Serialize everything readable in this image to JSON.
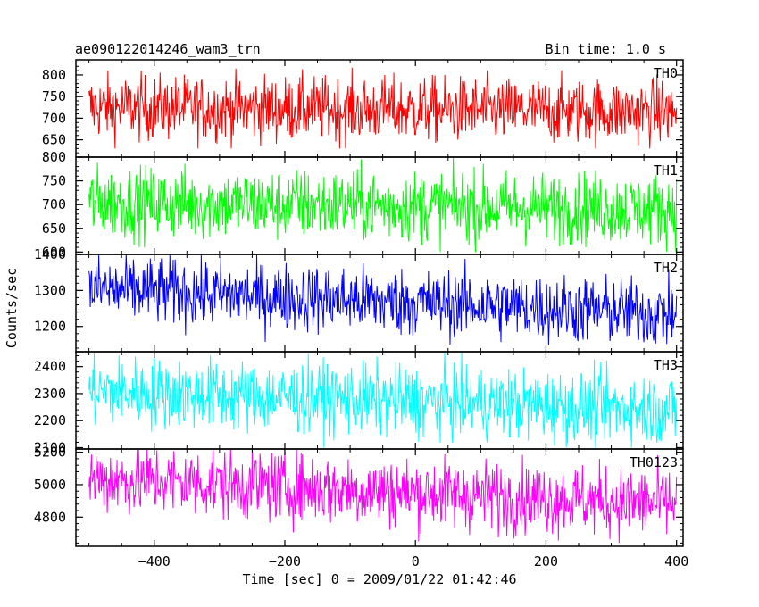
{
  "header": {
    "title": "ae090122014246_wam3_trn",
    "bin_time": "Bin time: 1.0 s"
  },
  "axes": {
    "ylabel": "Counts/sec",
    "xlabel": "Time [sec] 0 = 2009/01/22 01:42:46"
  },
  "chart_data": {
    "type": "line",
    "x_range": [
      -520,
      410
    ],
    "x_ticks": [
      -400,
      -200,
      0,
      200,
      400
    ],
    "x_tick_labels": [
      "−400",
      "−200",
      "0",
      "200",
      "400"
    ],
    "bin_time_s": 1.0,
    "x_start": -500,
    "x_end": 400,
    "panels": [
      {
        "name": "TH0",
        "color": "#ff0000",
        "ylim": [
          610,
          835
        ],
        "yticks": [
          650,
          700,
          750,
          800
        ],
        "approx_trend": {
          "start": 725,
          "end": 715
        },
        "approx_range": [
          630,
          830
        ]
      },
      {
        "name": "TH1",
        "color": "#00ff00",
        "ylim": [
          595,
          800
        ],
        "yticks": [
          600,
          650,
          700,
          750,
          800
        ],
        "approx_trend": {
          "start": 705,
          "end": 690
        },
        "approx_range": [
          600,
          800
        ]
      },
      {
        "name": "TH2",
        "color": "#0000ff",
        "ylim": [
          1130,
          1400
        ],
        "yticks": [
          1200,
          1300,
          1400
        ],
        "approx_trend": {
          "start": 1305,
          "end": 1235
        },
        "approx_range": [
          1150,
          1400
        ]
      },
      {
        "name": "TH3",
        "color": "#00ffff",
        "ylim": [
          2095,
          2455
        ],
        "yticks": [
          2100,
          2200,
          2300,
          2400
        ],
        "approx_trend": {
          "start": 2310,
          "end": 2240
        },
        "approx_range": [
          2100,
          2450
        ]
      },
      {
        "name": "TH0123",
        "color": "#ff00ff",
        "ylim": [
          4620,
          5220
        ],
        "yticks": [
          4800,
          5000,
          5200
        ],
        "approx_trend": {
          "start": 5040,
          "end": 4880
        },
        "approx_range": [
          4640,
          5220
        ]
      }
    ]
  }
}
